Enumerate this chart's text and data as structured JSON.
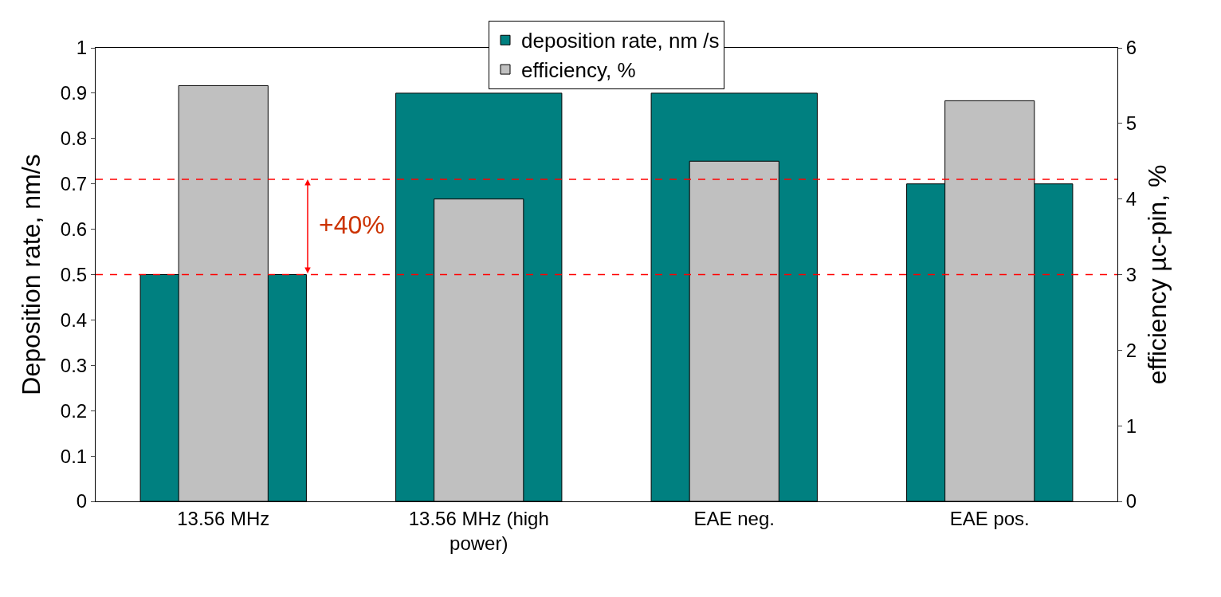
{
  "chart_data": {
    "type": "bar",
    "categories": [
      "13.56 MHz",
      "13.56 MHz (high power)",
      "EAE neg.",
      "EAE pos."
    ],
    "series": [
      {
        "name": "deposition rate, nm /s",
        "color": "#008080",
        "values": [
          0.5,
          0.9,
          0.9,
          0.7
        ]
      },
      {
        "name": "efficiency, %",
        "color": "#c0c0c0",
        "values": [
          5.5,
          4.0,
          4.5,
          5.3
        ],
        "axis": "y2"
      }
    ],
    "ylabel": "Deposition rate, nm/s",
    "y2label": "efficiency µc-pin, %",
    "ylim": [
      0,
      1
    ],
    "yticks": [
      0,
      0.1,
      0.2,
      0.3,
      0.4,
      0.5,
      0.6,
      0.7,
      0.8,
      0.9,
      1
    ],
    "y2lim": [
      0,
      6
    ],
    "y2ticks": [
      0,
      1,
      2,
      3,
      4,
      5,
      6
    ],
    "ref_lines": [
      {
        "axis": "y",
        "value": 0.5,
        "color": "#ff0000",
        "line_style": "dashed"
      },
      {
        "axis": "y",
        "value": 0.71,
        "color": "#ff0000",
        "line_style": "dashed"
      }
    ],
    "annotations": [
      "+40%"
    ],
    "legend": "top"
  }
}
